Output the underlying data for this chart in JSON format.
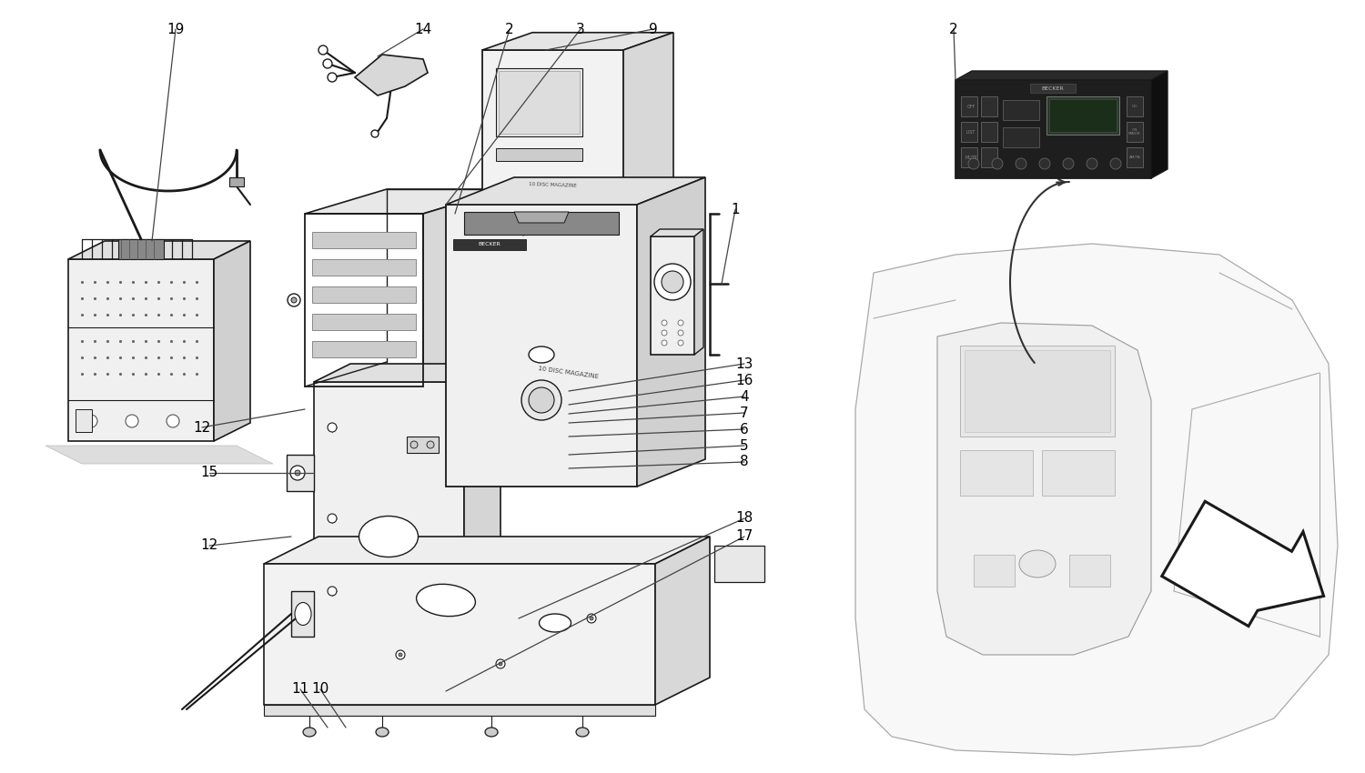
{
  "bg_color": "#ffffff",
  "line_color": "#1a1a1a",
  "label_color": "#000000",
  "figsize": [
    15,
    8.5
  ],
  "dpi": 100,
  "callouts": [
    [
      "19",
      193,
      32
    ],
    [
      "14",
      465,
      32
    ],
    [
      "2",
      560,
      32
    ],
    [
      "3",
      640,
      32
    ],
    [
      "9",
      718,
      32
    ],
    [
      "2",
      1048,
      32
    ],
    [
      "1",
      808,
      230
    ],
    [
      "12",
      222,
      470
    ],
    [
      "15",
      230,
      520
    ],
    [
      "12",
      230,
      600
    ],
    [
      "13",
      818,
      400
    ],
    [
      "16",
      818,
      418
    ],
    [
      "4",
      818,
      436
    ],
    [
      "7",
      818,
      454
    ],
    [
      "6",
      818,
      472
    ],
    [
      "5",
      818,
      490
    ],
    [
      "8",
      818,
      508
    ],
    [
      "18",
      818,
      570
    ],
    [
      "17",
      818,
      590
    ],
    [
      "11",
      330,
      758
    ],
    [
      "10",
      352,
      758
    ]
  ]
}
